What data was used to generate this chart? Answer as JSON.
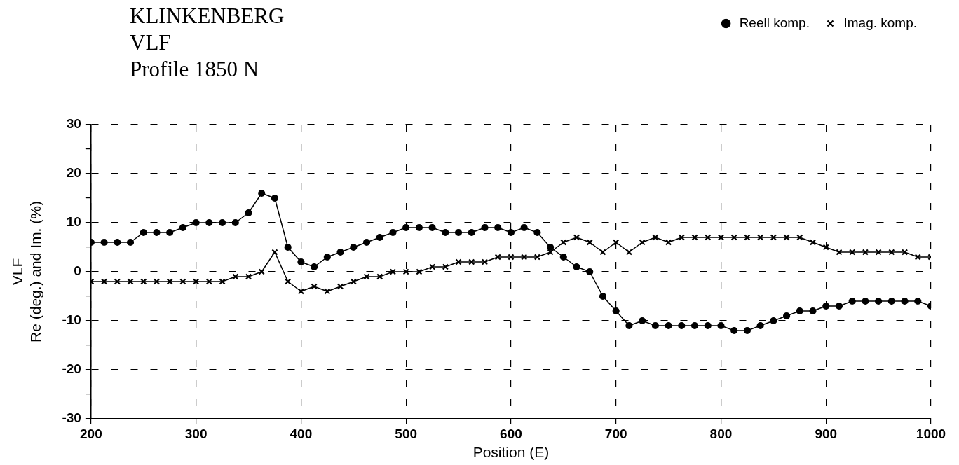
{
  "chart_data": {
    "type": "line",
    "title": "KLINKENBERG",
    "subtitle": "VLF\nProfile 1850 N",
    "xlabel": "Position (E)",
    "ylabel": "VLF\nRe (deg.) and Im. (%)",
    "x": [
      200,
      212.5,
      225,
      237.5,
      250,
      262.5,
      275,
      287.5,
      300,
      312.5,
      325,
      337.5,
      350,
      362.5,
      375,
      387.5,
      400,
      412.5,
      425,
      437.5,
      450,
      462.5,
      475,
      487.5,
      500,
      512.5,
      525,
      537.5,
      550,
      562.5,
      575,
      587.5,
      600,
      612.5,
      625,
      637.5,
      650,
      662.5,
      675,
      687.5,
      700,
      712.5,
      725,
      737.5,
      750,
      762.5,
      775,
      787.5,
      800,
      812.5,
      825,
      837.5,
      850,
      862.5,
      875,
      887.5,
      900,
      912.5,
      925,
      937.5,
      950,
      962.5,
      975,
      987.5,
      1000
    ],
    "series": [
      {
        "name": "Reell komp.",
        "color": "#000000",
        "marker": "circle",
        "values": [
          6,
          6,
          6,
          6,
          8,
          8,
          8,
          9,
          10,
          10,
          10,
          10,
          12,
          16,
          15,
          5,
          2,
          1,
          3,
          4,
          5,
          6,
          7,
          8,
          9,
          9,
          9,
          8,
          8,
          8,
          9,
          9,
          8,
          9,
          8,
          5,
          3,
          1,
          0,
          -5,
          -8,
          -11,
          -10,
          -11,
          -11,
          -11,
          -11,
          -11,
          -11,
          -12,
          -12,
          -11,
          -10,
          -9,
          -8,
          -8,
          -7,
          -7,
          -6,
          -6,
          -6,
          -6,
          -6,
          -6,
          -7
        ]
      },
      {
        "name": "Imag. komp.",
        "color": "#000000",
        "marker": "cross",
        "values": [
          -2,
          -2,
          -2,
          -2,
          -2,
          -2,
          -2,
          -2,
          -2,
          -2,
          -2,
          -1,
          -1,
          0,
          4,
          -2,
          -4,
          -3,
          -4,
          -3,
          -2,
          -1,
          -1,
          0,
          0,
          0,
          1,
          1,
          2,
          2,
          2,
          3,
          3,
          3,
          3,
          4,
          6,
          7,
          6,
          4,
          6,
          4,
          6,
          7,
          6,
          7,
          7,
          7,
          7,
          7,
          7,
          7,
          7,
          7,
          7,
          6,
          5,
          4,
          4,
          4,
          4,
          4,
          4,
          3,
          3
        ]
      }
    ],
    "xlim": [
      200,
      1000
    ],
    "xticks": [
      200,
      300,
      400,
      500,
      600,
      700,
      800,
      900,
      1000
    ],
    "ylim": [
      -30,
      30
    ],
    "yticks": [
      -30,
      {
        "value": -25,
        "label": null
      },
      -20,
      {
        "value": -15,
        "label": null
      },
      -10,
      {
        "value": -5,
        "label": null
      },
      0,
      {
        "value": 5,
        "label": null
      },
      10,
      {
        "value": 15,
        "label": null
      },
      20,
      {
        "value": 25,
        "label": null
      },
      30
    ],
    "grid": true,
    "legend": "top right",
    "line_style": "solid"
  }
}
